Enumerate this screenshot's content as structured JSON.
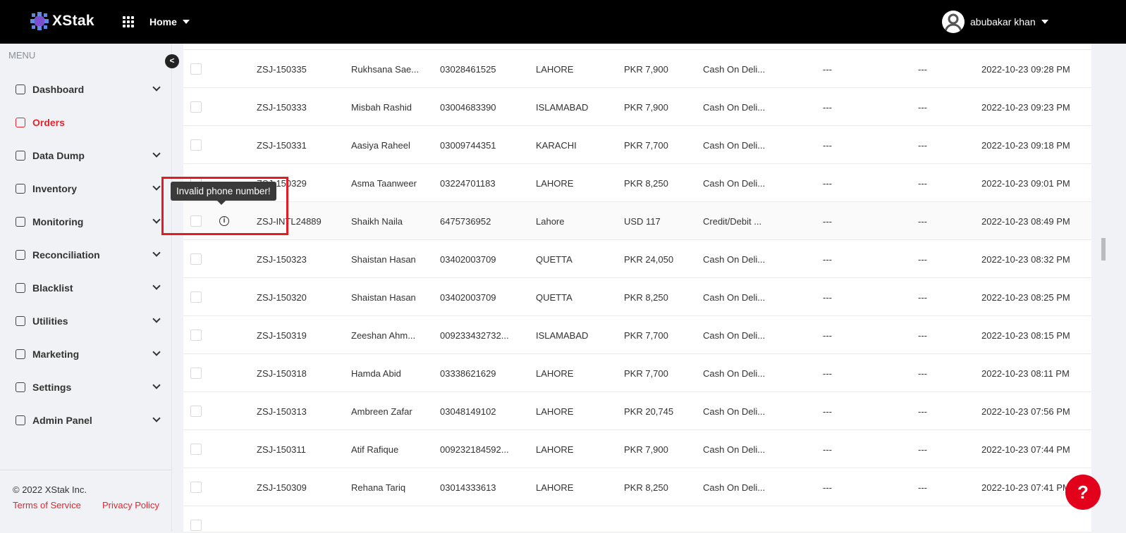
{
  "header": {
    "brand": "XStak",
    "home_label": "Home",
    "user_name": "abubakar khan"
  },
  "sidebar": {
    "menu_label": "MENU",
    "items": [
      {
        "label": "Dashboard",
        "expandable": true
      },
      {
        "label": "Orders",
        "active": true
      },
      {
        "label": "Data Dump",
        "expandable": true
      },
      {
        "label": "Inventory",
        "expandable": true
      },
      {
        "label": "Monitoring",
        "expandable": true
      },
      {
        "label": "Reconciliation",
        "expandable": true
      },
      {
        "label": "Blacklist",
        "expandable": true
      },
      {
        "label": "Utilities",
        "expandable": true
      },
      {
        "label": "Marketing",
        "expandable": true
      },
      {
        "label": "Settings",
        "expandable": true
      },
      {
        "label": "Admin Panel",
        "expandable": true
      }
    ],
    "copyright": "© 2022 XStak Inc.",
    "terms": "Terms of Service",
    "privacy": "Privacy Policy"
  },
  "tooltip": "Invalid phone number!",
  "orders": [
    {
      "id": "ZSJ-150335",
      "name": "Rukhsana Sae...",
      "phone": "03028461525",
      "city": "LAHORE",
      "amount": "PKR 7,900",
      "payment": "Cash On Deli...",
      "c1": "---",
      "c2": "---",
      "date": "2022-10-23 09:28 PM"
    },
    {
      "id": "ZSJ-150333",
      "name": "Misbah Rashid",
      "phone": "03004683390",
      "city": "ISLAMABAD",
      "amount": "PKR 7,900",
      "payment": "Cash On Deli...",
      "c1": "---",
      "c2": "---",
      "date": "2022-10-23 09:23 PM"
    },
    {
      "id": "ZSJ-150331",
      "name": "Aasiya Raheel",
      "phone": "03009744351",
      "city": "KARACHI",
      "amount": "PKR 7,700",
      "payment": "Cash On Deli...",
      "c1": "---",
      "c2": "---",
      "date": "2022-10-23 09:18 PM"
    },
    {
      "id": "ZSJ-150329",
      "name": "Asma Taanweer",
      "phone": "03224701183",
      "city": "LAHORE",
      "amount": "PKR 8,250",
      "payment": "Cash On Deli...",
      "c1": "---",
      "c2": "---",
      "date": "2022-10-23 09:01 PM"
    },
    {
      "id": "ZSJ-INTL24889",
      "name": "Shaikh Naila",
      "phone": "6475736952",
      "city": "Lahore",
      "amount": "USD 117",
      "payment": "Credit/Debit ...",
      "c1": "---",
      "c2": "---",
      "date": "2022-10-23 08:49 PM",
      "warning": true
    },
    {
      "id": "ZSJ-150323",
      "name": "Shaistan Hasan",
      "phone": "03402003709",
      "city": "QUETTA",
      "amount": "PKR 24,050",
      "payment": "Cash On Deli...",
      "c1": "---",
      "c2": "---",
      "date": "2022-10-23 08:32 PM"
    },
    {
      "id": "ZSJ-150320",
      "name": "Shaistan Hasan",
      "phone": "03402003709",
      "city": "QUETTA",
      "amount": "PKR 8,250",
      "payment": "Cash On Deli...",
      "c1": "---",
      "c2": "---",
      "date": "2022-10-23 08:25 PM"
    },
    {
      "id": "ZSJ-150319",
      "name": "Zeeshan Ahm...",
      "phone": "009233432732...",
      "city": "ISLAMABAD",
      "amount": "PKR 7,700",
      "payment": "Cash On Deli...",
      "c1": "---",
      "c2": "---",
      "date": "2022-10-23 08:15 PM"
    },
    {
      "id": "ZSJ-150318",
      "name": "Hamda Abid",
      "phone": "03338621629",
      "city": "LAHORE",
      "amount": "PKR 7,700",
      "payment": "Cash On Deli...",
      "c1": "---",
      "c2": "---",
      "date": "2022-10-23 08:11 PM"
    },
    {
      "id": "ZSJ-150313",
      "name": "Ambreen Zafar",
      "phone": "03048149102",
      "city": "LAHORE",
      "amount": "PKR 20,745",
      "payment": "Cash On Deli...",
      "c1": "---",
      "c2": "---",
      "date": "2022-10-23 07:56 PM"
    },
    {
      "id": "ZSJ-150311",
      "name": "Atif Rafique",
      "phone": "009232184592...",
      "city": "LAHORE",
      "amount": "PKR 7,900",
      "payment": "Cash On Deli...",
      "c1": "---",
      "c2": "---",
      "date": "2022-10-23 07:44 PM"
    },
    {
      "id": "ZSJ-150309",
      "name": "Rehana Tariq",
      "phone": "03014333613",
      "city": "LAHORE",
      "amount": "PKR 8,250",
      "payment": "Cash On Deli...",
      "c1": "---",
      "c2": "---",
      "date": "2022-10-23 07:41 PM"
    }
  ],
  "help_label": "?",
  "colors": {
    "accent": "#e3262f",
    "header": "#000000",
    "sidebar": "#f0f2f5"
  }
}
